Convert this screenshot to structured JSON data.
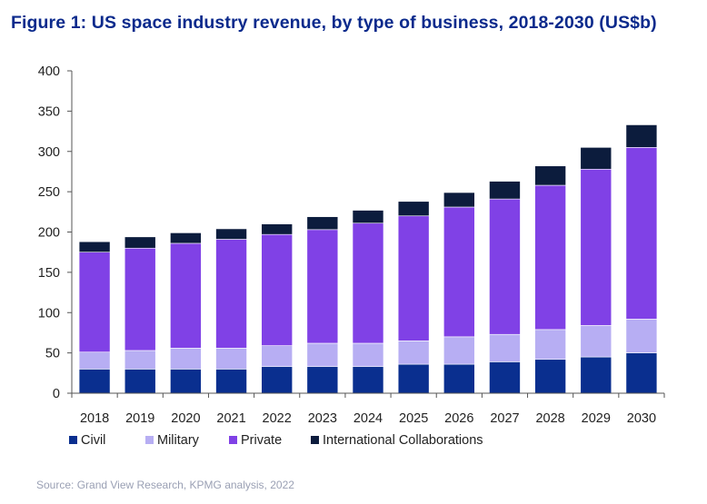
{
  "chart_data": {
    "type": "bar",
    "stacked": true,
    "title": "Figure 1: US space industry revenue, by type of business, 2018-2030 (US$b)",
    "xlabel": "",
    "ylabel": "",
    "ylim": [
      0,
      400
    ],
    "yticks": [
      0,
      50,
      100,
      150,
      200,
      250,
      300,
      350,
      400
    ],
    "grid": false,
    "legend": "bottom",
    "categories": [
      "2018",
      "2019",
      "2020",
      "2021",
      "2022",
      "2023",
      "2024",
      "2025",
      "2026",
      "2027",
      "2028",
      "2029",
      "2030"
    ],
    "series": [
      {
        "name": "Civil",
        "color": "#0a2f8f",
        "values": [
          30,
          30,
          30,
          30,
          33,
          33,
          33,
          36,
          36,
          39,
          42,
          45,
          50
        ]
      },
      {
        "name": "Military",
        "color": "#b7aef3",
        "values": [
          21,
          23,
          26,
          26,
          26,
          29,
          29,
          29,
          34,
          34,
          37,
          39,
          42
        ]
      },
      {
        "name": "Private",
        "color": "#8041e6",
        "values": [
          124,
          127,
          130,
          135,
          138,
          141,
          149,
          155,
          161,
          168,
          179,
          194,
          213
        ]
      },
      {
        "name": "International Collaborations",
        "color": "#0c1c3d",
        "values": [
          13,
          14,
          13,
          13,
          13,
          16,
          16,
          18,
          18,
          22,
          24,
          27,
          28
        ]
      }
    ]
  },
  "source": "Source: Grand View Research, KPMG analysis, 2022"
}
